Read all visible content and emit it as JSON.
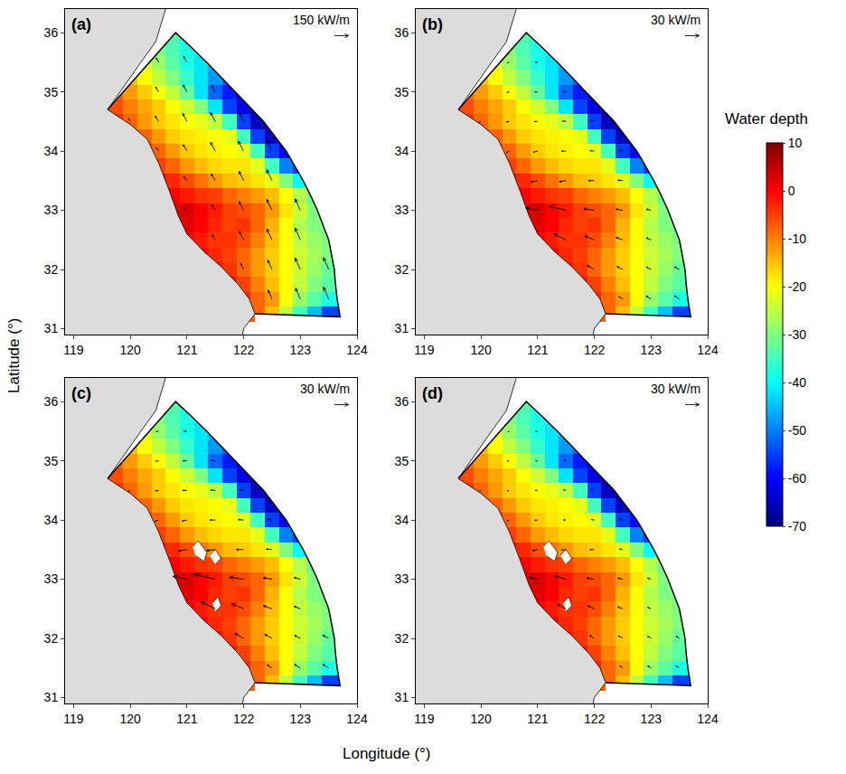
{
  "chart_data": {
    "type": "heatmap",
    "x_title": "Longitude (°)",
    "y_title": "Latitude (°)",
    "xlim": [
      118.85,
      124.0
    ],
    "xticks": [
      119,
      120,
      121,
      122,
      123,
      124
    ],
    "ylim": [
      30.9,
      36.4
    ],
    "yticks": [
      31,
      32,
      33,
      34,
      35,
      36
    ],
    "colorbar": {
      "title": "Water depth",
      "range": [
        -70,
        10
      ],
      "ticks": [
        10,
        0,
        -10,
        -20,
        -30,
        -40,
        -50,
        -60,
        -70
      ]
    },
    "depth": {
      "lon": [
        119.0,
        119.25,
        119.5,
        119.75,
        120.0,
        120.25,
        120.5,
        120.75,
        121.0,
        121.25,
        121.5,
        121.75,
        122.0,
        122.25,
        122.5,
        122.75,
        123.0,
        123.25,
        123.5,
        123.75,
        124.0
      ],
      "lat": [
        31.0,
        31.25,
        31.5,
        31.75,
        32.0,
        32.25,
        32.5,
        32.75,
        33.0,
        33.25,
        33.5,
        33.75,
        34.0,
        34.25,
        34.5,
        34.75,
        35.0,
        35.25,
        35.5,
        35.75,
        36.0
      ],
      "values": [
        [
          null,
          null,
          null,
          null,
          null,
          null,
          null,
          null,
          null,
          null,
          null,
          null,
          null,
          null,
          null,
          null,
          null,
          null,
          null,
          null,
          null
        ],
        [
          null,
          null,
          null,
          null,
          null,
          null,
          null,
          null,
          null,
          null,
          null,
          null,
          -5,
          -8,
          -15,
          -25,
          -35,
          -45,
          -55,
          -55,
          null
        ],
        [
          null,
          null,
          null,
          null,
          null,
          null,
          null,
          null,
          null,
          null,
          null,
          null,
          -3,
          -8,
          -12,
          -20,
          -28,
          -33,
          -38,
          -40,
          null
        ],
        [
          null,
          null,
          null,
          null,
          null,
          null,
          null,
          null,
          null,
          null,
          null,
          -2,
          -5,
          -10,
          -15,
          -20,
          -25,
          -30,
          -33,
          -35,
          null
        ],
        [
          null,
          null,
          null,
          null,
          null,
          null,
          null,
          null,
          null,
          null,
          -2,
          -4,
          -8,
          -12,
          -16,
          -20,
          -24,
          -28,
          -32,
          -34,
          null
        ],
        [
          null,
          null,
          null,
          null,
          null,
          null,
          null,
          null,
          null,
          0,
          -3,
          -5,
          -8,
          -12,
          -16,
          -20,
          -24,
          -27,
          -30,
          -32,
          null
        ],
        [
          null,
          null,
          null,
          null,
          null,
          null,
          null,
          null,
          0,
          -2,
          -4,
          -4,
          -6,
          -10,
          -15,
          -20,
          -25,
          -28,
          -30,
          null,
          null
        ],
        [
          null,
          null,
          null,
          null,
          null,
          null,
          null,
          0,
          2,
          0,
          -3,
          -5,
          -4,
          -8,
          -14,
          -20,
          -26,
          -30,
          -32,
          null,
          null
        ],
        [
          null,
          null,
          null,
          null,
          null,
          null,
          null,
          2,
          3,
          0,
          -2,
          -5,
          -6,
          -8,
          -12,
          -18,
          -24,
          -30,
          -33,
          null,
          null
        ],
        [
          null,
          null,
          null,
          null,
          null,
          null,
          0,
          0,
          -2,
          -4,
          -5,
          -8,
          -10,
          -12,
          -15,
          -20,
          -26,
          -32,
          null,
          null,
          null
        ],
        [
          null,
          null,
          null,
          null,
          null,
          null,
          0,
          -3,
          -6,
          -9,
          -12,
          -15,
          -16,
          -18,
          -22,
          -30,
          -40,
          -45,
          null,
          null,
          null
        ],
        [
          null,
          null,
          null,
          null,
          null,
          null,
          -5,
          -8,
          -12,
          -15,
          -17,
          -18,
          -18,
          -22,
          -35,
          -50,
          -55,
          null,
          null,
          null,
          null
        ],
        [
          null,
          null,
          null,
          null,
          null,
          -5,
          -8,
          -12,
          -16,
          -18,
          -19,
          -20,
          -22,
          -35,
          -55,
          -60,
          -62,
          null,
          null,
          null,
          null
        ],
        [
          null,
          null,
          null,
          null,
          -5,
          -8,
          -12,
          -16,
          -18,
          -19,
          -20,
          -22,
          -35,
          -55,
          -65,
          -65,
          null,
          null,
          null,
          null,
          null
        ],
        [
          null,
          null,
          null,
          -4,
          -8,
          -12,
          -16,
          -18,
          -20,
          -22,
          -25,
          -35,
          -55,
          -65,
          -68,
          null,
          null,
          null,
          null,
          null,
          null
        ],
        [
          null,
          null,
          -3,
          -6,
          -10,
          -13,
          -16,
          -20,
          -24,
          -30,
          -42,
          -55,
          -62,
          -65,
          null,
          null,
          null,
          null,
          null,
          null,
          null
        ],
        [
          null,
          null,
          null,
          -8,
          -12,
          -16,
          -20,
          -25,
          -32,
          -42,
          -52,
          -58,
          -60,
          null,
          null,
          null,
          null,
          null,
          null,
          null,
          null
        ],
        [
          null,
          null,
          null,
          null,
          -15,
          -20,
          -25,
          -30,
          -36,
          -42,
          -48,
          -52,
          null,
          null,
          null,
          null,
          null,
          null,
          null,
          null,
          null
        ],
        [
          null,
          null,
          null,
          null,
          null,
          -22,
          -28,
          -33,
          -38,
          -42,
          -46,
          null,
          null,
          null,
          null,
          null,
          null,
          null,
          null,
          null,
          null
        ],
        [
          null,
          null,
          null,
          null,
          null,
          null,
          -30,
          -34,
          -38,
          -40,
          null,
          null,
          null,
          null,
          null,
          null,
          null,
          null,
          null,
          null,
          null
        ],
        [
          null,
          null,
          null,
          null,
          null,
          null,
          null,
          -33,
          -36,
          null,
          null,
          null,
          null,
          null,
          null,
          null,
          null,
          null,
          null,
          null,
          null
        ]
      ]
    },
    "land": {
      "lon": [
        118.5,
        121.9,
        122.0,
        122.2,
        122.1,
        121.9,
        121.6,
        121.3,
        121.0,
        120.85,
        120.7,
        120.5,
        120.3,
        120.0,
        119.6,
        119.85,
        120.15,
        120.45,
        120.75,
        118.5
      ],
      "lat": [
        30.5,
        30.5,
        31.0,
        31.25,
        31.5,
        31.75,
        32.05,
        32.3,
        32.6,
        32.9,
        33.3,
        33.8,
        34.2,
        34.45,
        34.7,
        35.05,
        35.45,
        35.85,
        36.8,
        36.8
      ]
    },
    "model_boundary": {
      "lon": [
        119.6,
        120.8,
        121.08,
        121.35,
        121.6,
        121.85,
        122.1,
        122.35,
        122.55,
        122.75,
        122.9,
        123.05,
        123.18,
        123.3,
        123.4,
        123.5,
        123.55,
        123.6,
        123.62,
        123.65,
        123.7,
        122.2
      ],
      "lat": [
        34.7,
        36.0,
        35.75,
        35.5,
        35.25,
        35.0,
        34.75,
        34.5,
        34.25,
        34.0,
        33.75,
        33.5,
        33.25,
        33.0,
        32.75,
        32.5,
        32.25,
        32.0,
        31.75,
        31.5,
        31.2,
        31.25
      ]
    },
    "vector_points": {
      "lon": [
        122.5,
        123.0,
        123.5,
        122.0,
        122.5,
        123.0,
        123.5,
        121.5,
        122.0,
        122.5,
        123.0,
        121.0,
        121.5,
        122.0,
        122.5,
        123.0,
        121.0,
        121.5,
        122.0,
        122.5,
        120.5,
        121.0,
        121.5,
        122.0,
        122.5,
        120.0,
        120.5,
        121.0,
        121.5,
        122.0,
        120.5,
        121.0,
        121.5,
        120.5,
        121.0
      ],
      "lat": [
        31.5,
        31.5,
        31.5,
        32.0,
        32.0,
        32.0,
        32.0,
        32.5,
        32.5,
        32.5,
        32.5,
        33.0,
        33.0,
        33.0,
        33.0,
        33.0,
        33.5,
        33.5,
        33.5,
        33.5,
        34.0,
        34.0,
        34.0,
        34.0,
        34.0,
        34.5,
        34.5,
        34.5,
        34.5,
        34.5,
        35.0,
        35.0,
        35.0,
        35.5,
        35.5
      ]
    },
    "panels": [
      {
        "label": "(a)",
        "reference": {
          "value": 150,
          "label": "150 kW/m"
        },
        "u": [
          -40,
          -50,
          -55,
          -30,
          -45,
          -55,
          -55,
          -35,
          -45,
          -55,
          -55,
          -30,
          -40,
          -50,
          -55,
          -55,
          -35,
          -45,
          -50,
          -55,
          -25,
          -40,
          -50,
          -55,
          -50,
          -20,
          -35,
          -45,
          -50,
          -45,
          -30,
          -40,
          -40,
          -25,
          -35
        ],
        "v": [
          90,
          110,
          120,
          60,
          95,
          115,
          120,
          50,
          85,
          110,
          120,
          25,
          55,
          90,
          110,
          115,
          40,
          70,
          95,
          110,
          35,
          65,
          90,
          100,
          100,
          30,
          55,
          80,
          90,
          85,
          50,
          70,
          70,
          45,
          60
        ],
        "islands": []
      },
      {
        "label": "(b)",
        "reference": {
          "value": 30,
          "label": "30 kW/m"
        },
        "u": [
          -8,
          -10,
          -10,
          -15,
          -12,
          -10,
          -10,
          -25,
          -20,
          -14,
          -10,
          -25,
          -35,
          -22,
          -14,
          -10,
          -15,
          -14,
          -12,
          -10,
          -6,
          -8,
          -9,
          -9,
          -8,
          -4,
          -6,
          -7,
          -7,
          -7,
          -5,
          -6,
          -6,
          -4,
          -5
        ],
        "v": [
          5,
          6,
          6,
          8,
          6,
          5,
          5,
          12,
          8,
          5,
          4,
          5,
          8,
          3,
          2,
          2,
          -3,
          -2,
          0,
          1,
          -3,
          -2,
          0,
          1,
          2,
          -2,
          -1,
          0,
          1,
          2,
          -1,
          0,
          1,
          -1,
          0
        ],
        "islands": []
      },
      {
        "label": "(c)",
        "reference": {
          "value": 30,
          "label": "30 kW/m"
        },
        "u": [
          -10,
          -12,
          -12,
          -18,
          -15,
          -12,
          -12,
          -30,
          -25,
          -18,
          -13,
          -30,
          -45,
          -30,
          -18,
          -13,
          -18,
          -18,
          -15,
          -12,
          -8,
          -10,
          -11,
          -11,
          -10,
          -5,
          -7,
          -9,
          -9,
          -9,
          -6,
          -8,
          -8,
          -5,
          -6
        ],
        "v": [
          6,
          7,
          7,
          10,
          8,
          6,
          6,
          14,
          10,
          6,
          5,
          6,
          10,
          4,
          3,
          3,
          -3,
          -2,
          0,
          1,
          -3,
          -2,
          0,
          1,
          2,
          -2,
          -1,
          0,
          1,
          2,
          -1,
          0,
          1,
          -1,
          0
        ],
        "islands": [
          {
            "lon": [
              121.1,
              121.2,
              121.35,
              121.3,
              121.15
            ],
            "lat": [
              33.55,
              33.65,
              33.45,
              33.3,
              33.4
            ]
          },
          {
            "lon": [
              121.4,
              121.5,
              121.6,
              121.5
            ],
            "lat": [
              33.4,
              33.5,
              33.35,
              33.25
            ]
          },
          {
            "lon": [
              121.45,
              121.55,
              121.6,
              121.5
            ],
            "lat": [
              32.6,
              32.7,
              32.55,
              32.45
            ]
          }
        ]
      },
      {
        "label": "(d)",
        "reference": {
          "value": 30,
          "label": "30 kW/m"
        },
        "u": [
          -6,
          -7,
          -7,
          -10,
          -9,
          -7,
          -7,
          -18,
          -14,
          -10,
          -7,
          -18,
          -24,
          -16,
          -10,
          -7,
          -11,
          -10,
          -9,
          -7,
          -5,
          -6,
          -6,
          -6,
          -6,
          -3,
          -4,
          -5,
          -5,
          -5,
          -4,
          -4,
          -4,
          -3,
          -4
        ],
        "v": [
          4,
          4,
          4,
          6,
          5,
          4,
          4,
          9,
          6,
          4,
          3,
          4,
          6,
          2,
          2,
          2,
          -2,
          -1,
          0,
          1,
          -2,
          -1,
          0,
          1,
          2,
          -1,
          -1,
          0,
          1,
          2,
          -1,
          0,
          1,
          -1,
          0
        ],
        "islands": [
          {
            "lon": [
              121.1,
              121.2,
              121.35,
              121.3,
              121.15
            ],
            "lat": [
              33.55,
              33.65,
              33.45,
              33.3,
              33.4
            ]
          },
          {
            "lon": [
              121.4,
              121.5,
              121.6,
              121.5
            ],
            "lat": [
              33.4,
              33.5,
              33.35,
              33.25
            ]
          },
          {
            "lon": [
              121.45,
              121.55,
              121.6,
              121.5
            ],
            "lat": [
              32.6,
              32.7,
              32.55,
              32.45
            ]
          }
        ]
      }
    ]
  }
}
